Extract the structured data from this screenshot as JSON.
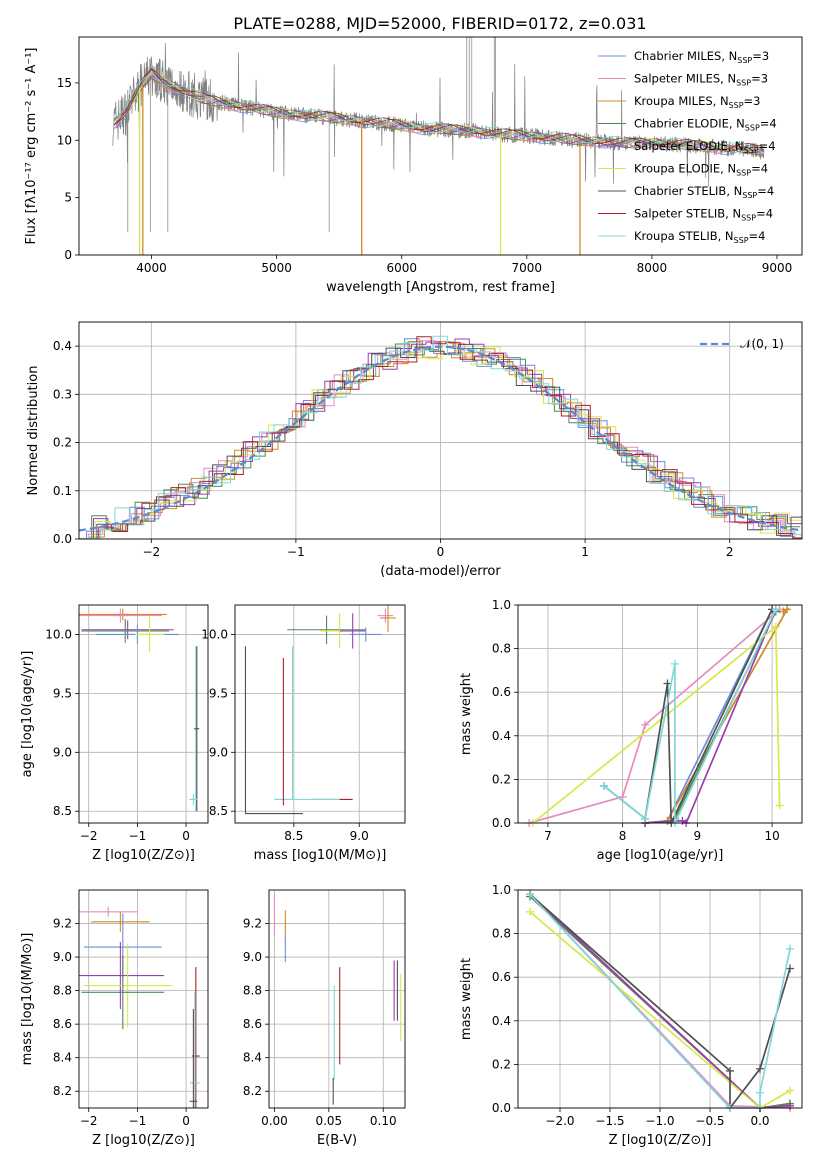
{
  "figure_title": "PLATE=0288, MJD=52000, FIBERID=0172, z=0.031",
  "colors": [
    "#6a8fd8",
    "#e88bc0",
    "#d08a2a",
    "#4f8a55",
    "#9a3fb0",
    "#d8e84a",
    "#505050",
    "#b01e28",
    "#80d8d8"
  ],
  "chart_data": [
    {
      "id": "spectrum",
      "type": "line",
      "title": "PLATE=0288, MJD=52000, FIBERID=0172, z=0.031",
      "xlabel": "wavelength [Angstrom, rest frame]",
      "ylabel": "Flux [fλ10⁻¹⁷ erg cm⁻² s⁻¹ A⁻¹]",
      "xlim": [
        3420,
        9200
      ],
      "ylim": [
        0,
        19
      ],
      "xticks": [
        4000,
        5000,
        6000,
        7000,
        8000,
        9000
      ],
      "yticks": [
        0,
        5,
        10,
        15
      ],
      "grid": false,
      "legend_position": "top-right",
      "continuum": {
        "x": [
          3700,
          3800,
          3900,
          4000,
          4100,
          4200,
          4400,
          4600,
          4800,
          5000,
          5200,
          5400,
          5600,
          5800,
          6000,
          6200,
          6400,
          6600,
          6800,
          7000,
          7200,
          7400,
          7600,
          7800,
          8000,
          8200,
          8400,
          8600,
          8800,
          8900
        ],
        "y": [
          11.5,
          12.5,
          14.5,
          15.8,
          15.0,
          14.6,
          13.6,
          13.2,
          12.8,
          12.4,
          12.2,
          12.0,
          11.8,
          11.5,
          11.3,
          11.0,
          10.9,
          10.8,
          10.5,
          10.4,
          10.2,
          10.0,
          9.9,
          9.7,
          9.8,
          9.6,
          9.5,
          9.3,
          9.2,
          9.0
        ]
      },
      "series": [
        {
          "name": "Chabrier MILES, N_SSP=3",
          "label_main": "Chabrier MILES, N",
          "label_sub": "SSP",
          "label_tail": "=3"
        },
        {
          "name": "Salpeter MILES, N_SSP=3",
          "label_main": "Salpeter MILES, N",
          "label_sub": "SSP",
          "label_tail": "=3"
        },
        {
          "name": "Kroupa MILES, N_SSP=3",
          "label_main": "Kroupa MILES, N",
          "label_sub": "SSP",
          "label_tail": "=3"
        },
        {
          "name": "Chabrier ELODIE, N_SSP=4",
          "label_main": "Chabrier ELODIE, N",
          "label_sub": "SSP",
          "label_tail": "=4"
        },
        {
          "name": "Salpeter ELODIE, N_SSP=4",
          "label_main": "Salpeter ELODIE, N",
          "label_sub": "SSP",
          "label_tail": "=4"
        },
        {
          "name": "Kroupa ELODIE, N_SSP=4",
          "label_main": "Kroupa ELODIE, N",
          "label_sub": "SSP",
          "label_tail": "=4"
        },
        {
          "name": "Chabrier STELIB, N_SSP=4",
          "label_main": "Chabrier STELIB, N",
          "label_sub": "SSP",
          "label_tail": "=4"
        },
        {
          "name": "Salpeter STELIB, N_SSP=4",
          "label_main": "Salpeter STELIB, N",
          "label_sub": "SSP",
          "label_tail": "=4"
        },
        {
          "name": "Kroupa STELIB, N_SSP=4",
          "label_main": "Kroupa STELIB, N",
          "label_sub": "SSP",
          "label_tail": "=4"
        }
      ],
      "drops": [
        {
          "x": 3905,
          "color": "#d8e84a"
        },
        {
          "x": 3930,
          "color": "#d08a2a"
        },
        {
          "x": 5680,
          "color": "#d08a2a"
        },
        {
          "x": 6790,
          "color": "#d8e84a"
        },
        {
          "x": 7425,
          "color": "#d08a2a"
        }
      ]
    },
    {
      "id": "residuals",
      "type": "bar",
      "xlabel": "(data-model)/error",
      "ylabel": "Normed distribution",
      "xlim": [
        -2.5,
        2.5
      ],
      "ylim": [
        0,
        0.45
      ],
      "xticks": [
        -2,
        -1,
        0,
        1,
        2
      ],
      "yticks": [
        0.0,
        0.1,
        0.2,
        0.3,
        0.4
      ],
      "grid": true,
      "legend_position": "top-right",
      "gaussian": {
        "name": "N(0,1)",
        "label_main": "𝒩(0, 1)",
        "mean": 0,
        "sigma": 1
      },
      "bin_width": 0.1
    },
    {
      "id": "age_vs_Z",
      "type": "scatter",
      "xlabel": "Z [log10(Z/Z⊙)]",
      "ylabel": "age  [log10(age/yr)]",
      "xlim": [
        -2.2,
        0.45
      ],
      "ylim": [
        8.4,
        10.25
      ],
      "xticks": [
        -2,
        -1,
        0
      ],
      "yticks": [
        8.5,
        9.0,
        9.5,
        10.0
      ],
      "grid": true,
      "points": [
        {
          "x": -1.3,
          "y": 10.17,
          "xerr": 0.9,
          "yerr": 0.05,
          "series": 2
        },
        {
          "x": -1.35,
          "y": 10.16,
          "xerr": 0.85,
          "yerr": 0.06,
          "series": 1
        },
        {
          "x": -1.2,
          "y": 10.04,
          "xerr": 0.95,
          "yerr": 0.08,
          "series": 4
        },
        {
          "x": -1.25,
          "y": 10.03,
          "xerr": 0.9,
          "yerr": 0.1,
          "series": 3
        },
        {
          "x": -1.0,
          "y": 10.0,
          "xerr": 0.85,
          "yerr": 0.08,
          "series": 0
        },
        {
          "x": -0.75,
          "y": 10.0,
          "xerr": 0.3,
          "yerr": 0.15,
          "series": 5
        },
        {
          "x": 0.2,
          "y": 9.2,
          "xerr": 0.05,
          "yerr": 0.7,
          "series": 8
        },
        {
          "x": 0.22,
          "y": 9.2,
          "xerr": 0.05,
          "yerr": 0.7,
          "series": 6
        },
        {
          "x": 0.15,
          "y": 8.6,
          "xerr": 0.08,
          "yerr": 0.05,
          "series": 8
        }
      ]
    },
    {
      "id": "age_vs_mass",
      "type": "scatter",
      "xlabel": "mass [log10(M/M⊙)]",
      "ylabel": "",
      "xlim": [
        8.05,
        9.35
      ],
      "ylim": [
        8.4,
        10.25
      ],
      "xticks": [
        8.5,
        9.0
      ],
      "yticks": [
        8.5,
        9.0,
        9.5,
        10.0
      ],
      "grid": true,
      "points": [
        {
          "x": 9.2,
          "y": 10.16,
          "xerr": 0.06,
          "yerr": 0.06,
          "series": 1
        },
        {
          "x": 9.22,
          "y": 10.14,
          "xerr": 0.06,
          "yerr": 0.12,
          "series": 2
        },
        {
          "x": 8.75,
          "y": 10.04,
          "xerr": 0.3,
          "yerr": 0.12,
          "series": 3
        },
        {
          "x": 8.85,
          "y": 10.03,
          "xerr": 0.15,
          "yerr": 0.15,
          "series": 5
        },
        {
          "x": 8.95,
          "y": 10.03,
          "xerr": 0.1,
          "yerr": 0.15,
          "series": 4
        },
        {
          "x": 9.05,
          "y": 10.0,
          "xerr": 0.12,
          "yerr": 0.06,
          "series": 0
        },
        {
          "x": 8.8,
          "y": 8.6,
          "xerr": 0.15,
          "yerr": 0.0,
          "series": 7
        },
        {
          "x": 8.6,
          "y": 8.6,
          "xerr": 0.25,
          "yerr": 0.0,
          "series": 8
        },
        {
          "x": 8.35,
          "y": 8.48,
          "xerr": 0.22,
          "yerr": 0.0,
          "series": 6
        }
      ],
      "vlines": [
        {
          "x": 8.13,
          "y0": 8.48,
          "y1": 9.9,
          "series": 6
        },
        {
          "x": 8.42,
          "y0": 8.55,
          "y1": 9.8,
          "series": 7
        },
        {
          "x": 8.49,
          "y0": 8.6,
          "y1": 9.9,
          "series": 8
        }
      ]
    },
    {
      "id": "mass_weight_vs_age",
      "type": "line",
      "xlabel": "age  [log10(age/yr)]",
      "ylabel": "mass weight",
      "xlim": [
        6.6,
        10.4
      ],
      "ylim": [
        0,
        1.0
      ],
      "xticks": [
        7,
        8,
        9,
        10
      ],
      "yticks": [
        0.0,
        0.2,
        0.4,
        0.6,
        0.8,
        1.0
      ],
      "grid": true,
      "series_points": [
        {
          "series": 0,
          "x": [
            8.3,
            8.6,
            10.0
          ],
          "y": [
            0.0,
            0.01,
            0.98
          ]
        },
        {
          "series": 1,
          "x": [
            6.75,
            8.0,
            8.3,
            10.1
          ],
          "y": [
            0.0,
            0.12,
            0.45,
            0.98
          ]
        },
        {
          "series": 2,
          "x": [
            8.3,
            8.6,
            10.2,
            10.15
          ],
          "y": [
            0.0,
            0.01,
            0.98,
            0.97
          ]
        },
        {
          "series": 3,
          "x": [
            8.3,
            8.65,
            8.7,
            10.05
          ],
          "y": [
            0.0,
            0.01,
            0.02,
            0.97
          ]
        },
        {
          "series": 4,
          "x": [
            8.3,
            8.8,
            8.85,
            10.05
          ],
          "y": [
            0.0,
            0.01,
            0.0,
            0.98
          ]
        },
        {
          "series": 5,
          "x": [
            6.8,
            10.05,
            10.1
          ],
          "y": [
            0.0,
            0.9,
            0.08
          ]
        },
        {
          "series": 6,
          "x": [
            7.75,
            8.3,
            8.6,
            8.65,
            10.0
          ],
          "y": [
            0.17,
            0.02,
            0.64,
            0.0,
            0.98
          ]
        },
        {
          "series": 8,
          "x": [
            7.75,
            8.3,
            8.7,
            8.7,
            10.05
          ],
          "y": [
            0.17,
            0.02,
            0.73,
            0.0,
            0.98
          ]
        }
      ]
    },
    {
      "id": "mass_vs_Z",
      "type": "scatter",
      "xlabel": "Z [log10(Z/Z⊙)]",
      "ylabel": "mass [log10(M/M⊙)]",
      "xlim": [
        -2.2,
        0.45
      ],
      "ylim": [
        8.1,
        9.4
      ],
      "xticks": [
        -2,
        -1,
        0
      ],
      "yticks": [
        8.2,
        8.4,
        8.6,
        8.8,
        9.0,
        9.2
      ],
      "grid": true,
      "points": [
        {
          "x": -1.6,
          "y": 9.27,
          "xerr": 0.6,
          "yerr": 0.03,
          "series": 1
        },
        {
          "x": -1.35,
          "y": 9.21,
          "xerr": 0.6,
          "yerr": 0.06,
          "series": 2
        },
        {
          "x": -1.3,
          "y": 9.06,
          "xerr": 0.8,
          "yerr": 0.2,
          "series": 0
        },
        {
          "x": -1.35,
          "y": 8.89,
          "xerr": 0.9,
          "yerr": 0.2,
          "series": 4
        },
        {
          "x": -1.2,
          "y": 8.83,
          "xerr": 0.9,
          "yerr": 0.25,
          "series": 5
        },
        {
          "x": -1.3,
          "y": 8.79,
          "xerr": 0.85,
          "yerr": 0.22,
          "series": 3
        },
        {
          "x": 0.2,
          "y": 8.41,
          "xerr": 0.08,
          "yerr": 0.53,
          "series": 7
        },
        {
          "x": 0.18,
          "y": 8.25,
          "xerr": 0.1,
          "yerr": 0.55,
          "series": 8
        },
        {
          "x": 0.15,
          "y": 8.14,
          "xerr": 0.08,
          "yerr": 0.55,
          "series": 6
        }
      ]
    },
    {
      "id": "mass_vs_ebv",
      "type": "scatter",
      "xlabel": "E(B-V)",
      "ylabel": "",
      "xlim": [
        -0.005,
        0.12
      ],
      "ylim": [
        8.1,
        9.4
      ],
      "xticks": [
        0.0,
        0.05,
        0.1
      ],
      "yticks": [
        8.2,
        8.4,
        8.6,
        8.8,
        9.0,
        9.2
      ],
      "grid": true,
      "points": [
        {
          "x": 0.0,
          "y": 9.25,
          "xerr": 0,
          "yerr": 0.12,
          "series": 1
        },
        {
          "x": 0.01,
          "y": 9.2,
          "xerr": 0,
          "yerr": 0.08,
          "series": 2
        },
        {
          "x": 0.01,
          "y": 9.05,
          "xerr": 0,
          "yerr": 0.08,
          "series": 0
        },
        {
          "x": 0.055,
          "y": 8.55,
          "xerr": 0,
          "yerr": 0.28,
          "series": 8
        },
        {
          "x": 0.06,
          "y": 8.65,
          "xerr": 0,
          "yerr": 0.29,
          "series": 7
        },
        {
          "x": 0.054,
          "y": 8.2,
          "xerr": 0,
          "yerr": 0.08,
          "series": 6
        },
        {
          "x": 0.11,
          "y": 8.8,
          "xerr": 0,
          "yerr": 0.18,
          "series": 4
        },
        {
          "x": 0.113,
          "y": 8.8,
          "xerr": 0,
          "yerr": 0.18,
          "series": 6
        },
        {
          "x": 0.116,
          "y": 8.7,
          "xerr": 0,
          "yerr": 0.2,
          "series": 5
        }
      ]
    },
    {
      "id": "mass_weight_vs_Z",
      "type": "line",
      "xlabel": "Z [log10(Z/Z⊙)]",
      "ylabel": "mass weight",
      "xlim": [
        -2.42,
        0.42
      ],
      "ylim": [
        0,
        1.0
      ],
      "xticks": [
        -2.0,
        -1.5,
        -1.0,
        -0.5,
        0.0
      ],
      "yticks": [
        0.0,
        0.2,
        0.4,
        0.6,
        0.8,
        1.0
      ],
      "grid": true,
      "series_points": [
        {
          "series": 0,
          "x": [
            -2.3,
            0.0,
            0.3
          ],
          "y": [
            0.98,
            0.0,
            0.01
          ]
        },
        {
          "series": 1,
          "x": [
            -2.3,
            -0.3,
            0.3
          ],
          "y": [
            0.98,
            0.01,
            0.0
          ]
        },
        {
          "series": 2,
          "x": [
            -2.3,
            0.0,
            0.3
          ],
          "y": [
            0.98,
            0.0,
            0.02
          ]
        },
        {
          "series": 3,
          "x": [
            -2.3,
            0.0,
            0.3
          ],
          "y": [
            0.97,
            0.0,
            0.02
          ]
        },
        {
          "series": 4,
          "x": [
            -2.3,
            0.0,
            0.3
          ],
          "y": [
            0.98,
            0.0,
            0.01
          ]
        },
        {
          "series": 5,
          "x": [
            -2.3,
            0.0,
            0.3
          ],
          "y": [
            0.9,
            0.0,
            0.08
          ]
        },
        {
          "series": 6,
          "x": [
            -2.3,
            -0.3,
            -0.3,
            0.0,
            0.3
          ],
          "y": [
            0.98,
            0.17,
            0.0,
            0.18,
            0.64
          ]
        },
        {
          "series": 8,
          "x": [
            -2.3,
            -0.3,
            0.0,
            0.0,
            0.3
          ],
          "y": [
            0.98,
            0.0,
            0.0,
            0.07,
            0.73
          ]
        }
      ]
    }
  ]
}
